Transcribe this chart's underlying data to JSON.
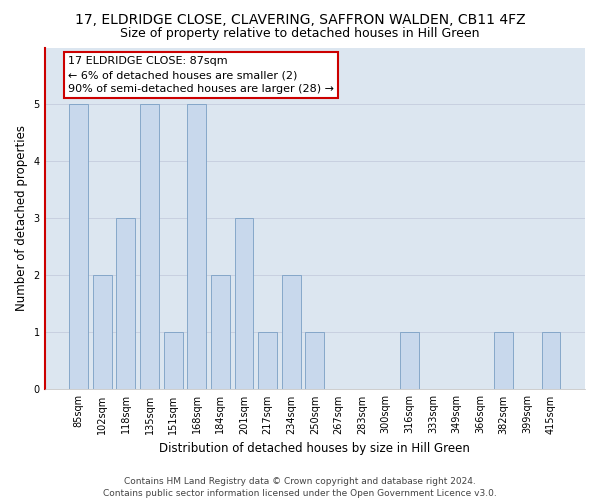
{
  "title": "17, ELDRIDGE CLOSE, CLAVERING, SAFFRON WALDEN, CB11 4FZ",
  "subtitle": "Size of property relative to detached houses in Hill Green",
  "xlabel": "Distribution of detached houses by size in Hill Green",
  "ylabel": "Number of detached properties",
  "categories": [
    "85sqm",
    "102sqm",
    "118sqm",
    "135sqm",
    "151sqm",
    "168sqm",
    "184sqm",
    "201sqm",
    "217sqm",
    "234sqm",
    "250sqm",
    "267sqm",
    "283sqm",
    "300sqm",
    "316sqm",
    "333sqm",
    "349sqm",
    "366sqm",
    "382sqm",
    "399sqm",
    "415sqm"
  ],
  "values": [
    5,
    2,
    3,
    5,
    1,
    5,
    2,
    3,
    1,
    2,
    1,
    0,
    0,
    0,
    1,
    0,
    0,
    0,
    1,
    0,
    1
  ],
  "bar_color": "#c8d8ec",
  "bar_edge_color": "#7a9fc4",
  "highlight_bar_index": 0,
  "highlight_edge_color": "#cc0000",
  "ylim": [
    0,
    6
  ],
  "yticks": [
    0,
    1,
    2,
    3,
    4,
    5
  ],
  "annotation_title": "17 ELDRIDGE CLOSE: 87sqm",
  "annotation_line1": "← 6% of detached houses are smaller (2)",
  "annotation_line2": "90% of semi-detached houses are larger (28) →",
  "annotation_box_edge_color": "#cc0000",
  "grid_color": "#c8d0e0",
  "plot_bg_color": "#dce6f0",
  "footer_line1": "Contains HM Land Registry data © Crown copyright and database right 2024.",
  "footer_line2": "Contains public sector information licensed under the Open Government Licence v3.0.",
  "title_fontsize": 10,
  "subtitle_fontsize": 9,
  "xlabel_fontsize": 8.5,
  "ylabel_fontsize": 8.5,
  "tick_fontsize": 7,
  "annotation_fontsize": 8,
  "footer_fontsize": 6.5
}
